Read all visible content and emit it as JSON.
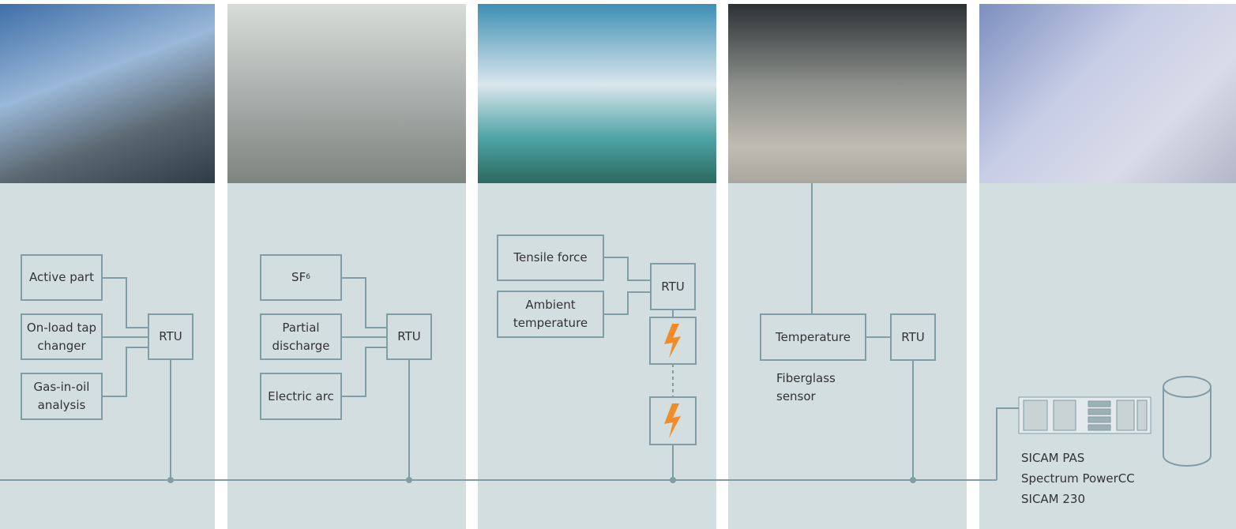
{
  "columns": [
    {
      "sensors": [
        "Active part",
        "On-load tap changer",
        "Gas-in-oil analysis"
      ],
      "unit": "RTU"
    },
    {
      "sensors": [
        {
          "text": "SF",
          "subscript": "6"
        },
        "Partial discharge",
        "Electric arc"
      ],
      "unit": "RTU"
    },
    {
      "sensors": [
        "Tensile force",
        "Ambient temperature"
      ],
      "unit": "RTU"
    },
    {
      "sensors": [
        "Temperature"
      ],
      "unit": "RTU",
      "note": "Fiberglass sensor"
    },
    {
      "systems": [
        "SICAM PAS",
        "Spectrum PowerCC",
        "SICAM 230"
      ]
    }
  ]
}
